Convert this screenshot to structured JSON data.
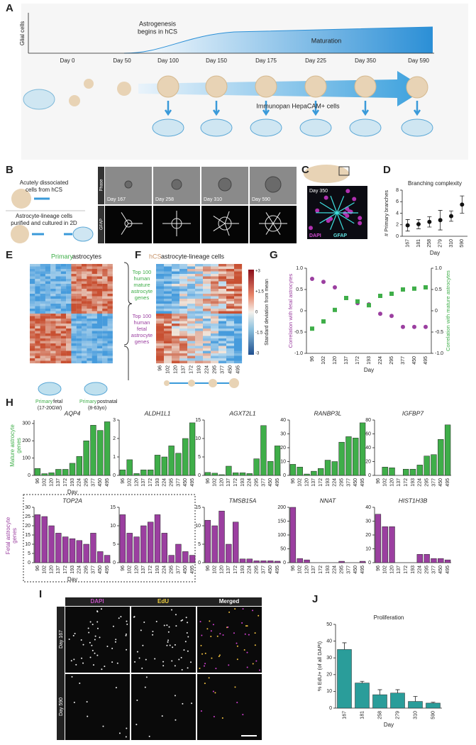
{
  "panels": {
    "A": {
      "label": "A",
      "glial": "Glial cells",
      "astrogenesis": [
        "Astrogenesis",
        "begins in hCS"
      ],
      "maturation": "Maturation",
      "days": [
        "Day 0",
        "Day 50",
        "Day 100",
        "Day 150",
        "Day 175",
        "Day 225",
        "Day 350",
        "Day 590"
      ],
      "immunopan": "Immunopan HepaCAM+ cells"
    },
    "B": {
      "label": "B",
      "acute": [
        "Acutely dissociated",
        "cells from hCS"
      ],
      "purified": [
        "Astrocyte-lineage cells",
        "purified and cultured in 2D"
      ],
      "rows": [
        "Phase",
        "GFAP"
      ],
      "days": [
        "Day 167",
        "Day 258",
        "Day 310",
        "Day 590"
      ]
    },
    "C": {
      "label": "C",
      "day": "Day 350",
      "dapi": "DAPI",
      "gfap": "GFAP"
    },
    "D": {
      "label": "D"
    },
    "E": {
      "label": "E",
      "title_a": "Primary",
      "title_b": " astrocytes",
      "fetal_a": "Primary",
      "fetal_b": " fetal",
      "fetal_c": "(17-20GW)",
      "post_a": "Primary",
      "post_b": " postnatal",
      "post_c": "(8-63yo)"
    },
    "F": {
      "label": "F",
      "title_a": "hCS",
      "title_b": " astrocyte-lineage cells",
      "mature": [
        "Top 100",
        "human",
        "mature",
        "astrocyte",
        "genes"
      ],
      "fetal": [
        "Top 100",
        "human",
        "fetal",
        "astrocyte",
        "genes"
      ],
      "colorbar": [
        "+3",
        "+1.5",
        "0",
        "-1.5",
        "-3"
      ],
      "colorbar_title": "Standard deviation from mean",
      "days": [
        "96",
        "102",
        "120",
        "137",
        "172",
        "193",
        "224",
        "295",
        "377",
        "450",
        "495"
      ]
    },
    "G": {
      "label": "G"
    },
    "H": {
      "label": "H",
      "mature": [
        "Mature astrocyte",
        "genes"
      ],
      "fetal": [
        "Fetal astrocyte",
        "genes"
      ]
    },
    "I": {
      "label": "I",
      "cols": [
        "DAPI",
        "EdU",
        "Merged"
      ],
      "rows": [
        "Day 167",
        "Day 590"
      ]
    },
    "J": {
      "label": "J"
    }
  },
  "chart_data": [
    {
      "type": "scatter",
      "title": "Branching complexity",
      "xlabel": "Day",
      "ylabel": "# Primary branches",
      "categories": [
        "167",
        "181",
        "258",
        "279",
        "310",
        "590"
      ],
      "series": [
        {
          "color": "#111111",
          "marker": "circle",
          "values": [
            1.9,
            2.1,
            2.5,
            2.8,
            3.5,
            5.5
          ],
          "errors": [
            1.0,
            0.8,
            0.9,
            1.7,
            0.9,
            1.5
          ]
        }
      ],
      "ylim": [
        0,
        8
      ],
      "yticks": [
        0,
        2,
        4,
        6,
        8
      ]
    },
    {
      "type": "scatter",
      "xlabel": "Day",
      "ylabel": "Correlation with fetal astrocytes",
      "y2label": "Correlation with mature astrocytes",
      "categories": [
        "96",
        "102",
        "120",
        "137",
        "172",
        "193",
        "224",
        "295",
        "377",
        "450",
        "495"
      ],
      "series": [
        {
          "color": "#9b3fa0",
          "marker": "circle",
          "values": [
            0.75,
            0.68,
            0.55,
            0.3,
            0.18,
            0.15,
            -0.07,
            -0.12,
            -0.38,
            -0.38,
            -0.38
          ]
        },
        {
          "color": "#3fae49",
          "marker": "square",
          "axis": "y2",
          "values": [
            -0.42,
            -0.25,
            0.02,
            0.3,
            0.22,
            0.13,
            0.35,
            0.4,
            0.5,
            0.52,
            0.55
          ]
        }
      ],
      "ylim": [
        -1,
        1
      ],
      "yticks": [
        {
          "value": -1,
          "label": "-1.0"
        },
        -0.5,
        0,
        0.5,
        {
          "value": 1,
          "label": "1.0"
        }
      ],
      "y2lim": [
        -1,
        1
      ],
      "y2ticks": [
        {
          "value": -1,
          "label": "-1.0"
        },
        -0.5,
        0,
        0.5,
        {
          "value": 1,
          "label": "1.0"
        }
      ]
    },
    {
      "type": "bar",
      "title": "AQP4",
      "xlabel": "Day",
      "categories": [
        "96",
        "102",
        "120",
        "137",
        "172",
        "193",
        "224",
        "295",
        "377",
        "450",
        "495"
      ],
      "series": [
        {
          "color": "#3fae49",
          "values": [
            40,
            10,
            15,
            35,
            35,
            70,
            110,
            200,
            290,
            260,
            310
          ]
        }
      ],
      "ylim": [
        0,
        320
      ],
      "yticks": [
        0,
        100,
        200,
        300
      ]
    },
    {
      "type": "bar",
      "title": "ALDH1L1",
      "categories": [
        "96",
        "102",
        "120",
        "137",
        "172",
        "193",
        "224",
        "295",
        "377",
        "450",
        "495"
      ],
      "series": [
        {
          "color": "#3fae49",
          "values": [
            0.3,
            0.85,
            0.1,
            0.3,
            0.3,
            1.1,
            1.0,
            1.6,
            1.2,
            2.0,
            2.85
          ]
        }
      ],
      "ylim": [
        0,
        3
      ],
      "yticks": [
        0,
        1,
        2,
        3
      ]
    },
    {
      "type": "bar",
      "title": "AGXT2L1",
      "categories": [
        "96",
        "102",
        "120",
        "137",
        "172",
        "193",
        "224",
        "295",
        "377",
        "450",
        "495"
      ],
      "series": [
        {
          "color": "#3fae49",
          "values": [
            0.8,
            0.6,
            0.2,
            2.5,
            0.7,
            0.7,
            0.5,
            4.5,
            13.5,
            3.8,
            8
          ]
        }
      ],
      "ylim": [
        0,
        15
      ],
      "yticks": [
        0,
        5,
        10,
        15
      ]
    },
    {
      "type": "bar",
      "title": "RANBP3L",
      "categories": [
        "96",
        "102",
        "120",
        "137",
        "172",
        "193",
        "224",
        "295",
        "377",
        "450",
        "495"
      ],
      "series": [
        {
          "color": "#3fae49",
          "values": [
            8,
            6,
            1,
            3,
            5,
            11,
            10,
            24,
            28,
            27,
            38
          ]
        }
      ],
      "ylim": [
        0,
        40
      ],
      "yticks": [
        0,
        10,
        20,
        30,
        40
      ]
    },
    {
      "type": "bar",
      "title": "IGFBP7",
      "categories": [
        "96",
        "102",
        "120",
        "137",
        "172",
        "193",
        "224",
        "295",
        "377",
        "450",
        "495"
      ],
      "series": [
        {
          "color": "#3fae49",
          "values": [
            0,
            12,
            11,
            0,
            9,
            9,
            15,
            28,
            30,
            52,
            73
          ]
        }
      ],
      "ylim": [
        0,
        80
      ],
      "yticks": [
        0,
        20,
        40,
        60,
        80
      ]
    },
    {
      "type": "bar",
      "title": "TOP2A",
      "xlabel": "Day",
      "categories": [
        "96",
        "102",
        "120",
        "137",
        "172",
        "193",
        "224",
        "295",
        "377",
        "450",
        "495"
      ],
      "series": [
        {
          "color": "#9b3fa0",
          "values": [
            26,
            25,
            20,
            16,
            14,
            13,
            12,
            10,
            16,
            6,
            4
          ]
        }
      ],
      "ylim": [
        0,
        30
      ],
      "yticks": [
        0,
        5,
        10,
        15,
        20,
        25,
        30
      ]
    },
    {
      "type": "bar",
      "categories": [
        "96",
        "102",
        "120",
        "137",
        "172",
        "193",
        "224",
        "295",
        "377",
        "450",
        "495"
      ],
      "series": [
        {
          "color": "#9b3fa0",
          "values": [
            13,
            8,
            7,
            10,
            11,
            13,
            8,
            2,
            5,
            3,
            2
          ]
        }
      ],
      "ylim": [
        0,
        15
      ],
      "yticks": [
        0,
        5,
        10,
        15
      ]
    },
    {
      "type": "bar",
      "title": "TMSB15A",
      "categories": [
        "96",
        "102",
        "120",
        "137",
        "172",
        "193",
        "224",
        "295",
        "377",
        "450",
        "495"
      ],
      "series": [
        {
          "color": "#9b3fa0",
          "values": [
            11.5,
            10,
            14,
            5,
            11,
            1,
            1,
            0.5,
            0.5,
            0.5,
            0.4
          ]
        }
      ],
      "ylim": [
        0,
        15
      ],
      "yticks": [
        0,
        5,
        10,
        15
      ]
    },
    {
      "type": "bar",
      "title": "NNAT",
      "categories": [
        "96",
        "102",
        "120",
        "137",
        "172",
        "193",
        "224",
        "295",
        "377",
        "450",
        "495"
      ],
      "series": [
        {
          "color": "#9b3fa0",
          "values": [
            200,
            15,
            10,
            0,
            0,
            0,
            0,
            5,
            0,
            0,
            5
          ]
        }
      ],
      "ylim": [
        0,
        200
      ],
      "yticks": [
        0,
        50,
        100,
        150,
        200
      ]
    },
    {
      "type": "bar",
      "title": "HIST1H3B",
      "categories": [
        "96",
        "102",
        "120",
        "137",
        "172",
        "193",
        "224",
        "295",
        "377",
        "450",
        "495"
      ],
      "series": [
        {
          "color": "#9b3fa0",
          "values": [
            35,
            26,
            26,
            0,
            0,
            0,
            6,
            6,
            3,
            3,
            2
          ]
        }
      ],
      "ylim": [
        0,
        40
      ],
      "yticks": [
        0,
        10,
        20,
        30,
        40
      ]
    },
    {
      "type": "bar",
      "title": "Proliferation",
      "xlabel": "Day",
      "ylabel": "% EdU+ (of all DAPI)",
      "categories": [
        "167",
        "181",
        "258",
        "279",
        "310",
        "590"
      ],
      "series": [
        {
          "color": "#2a9d9a",
          "values": [
            35,
            15,
            8,
            9,
            4,
            3
          ],
          "errors": [
            4,
            1,
            3,
            2,
            3,
            0.5
          ]
        }
      ],
      "ylim": [
        0,
        50
      ],
      "yticks": [
        0,
        10,
        20,
        30,
        40,
        50
      ]
    }
  ]
}
